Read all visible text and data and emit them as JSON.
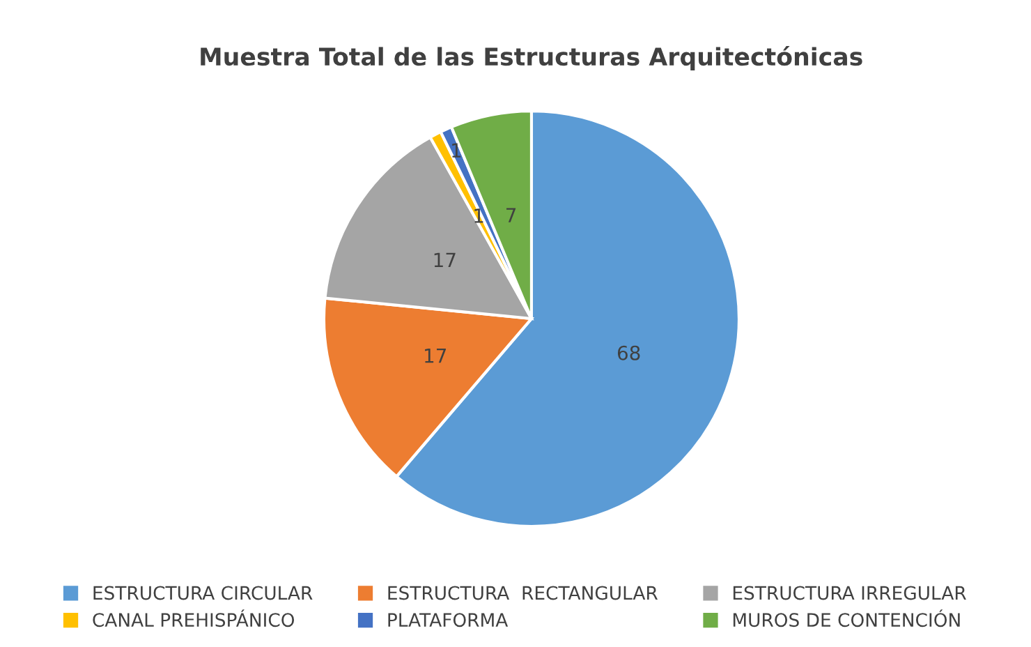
{
  "chart_data": {
    "type": "pie",
    "title": "Muestra Total de las Estructuras Arquitectónicas",
    "categories": [
      "ESTRUCTURA CIRCULAR",
      "ESTRUCTURA  RECTANGULAR",
      "ESTRUCTURA IRREGULAR",
      "CANAL PREHISPÁNICO",
      "PLATAFORMA",
      "MUROS DE CONTENCIÓN"
    ],
    "values": [
      68,
      17,
      17,
      1,
      1,
      7
    ],
    "colors": [
      "#5b9bd5",
      "#ed7d31",
      "#a5a5a5",
      "#ffc000",
      "#4472c4",
      "#70ad47"
    ],
    "data_labels": true,
    "legend": "bottom"
  }
}
